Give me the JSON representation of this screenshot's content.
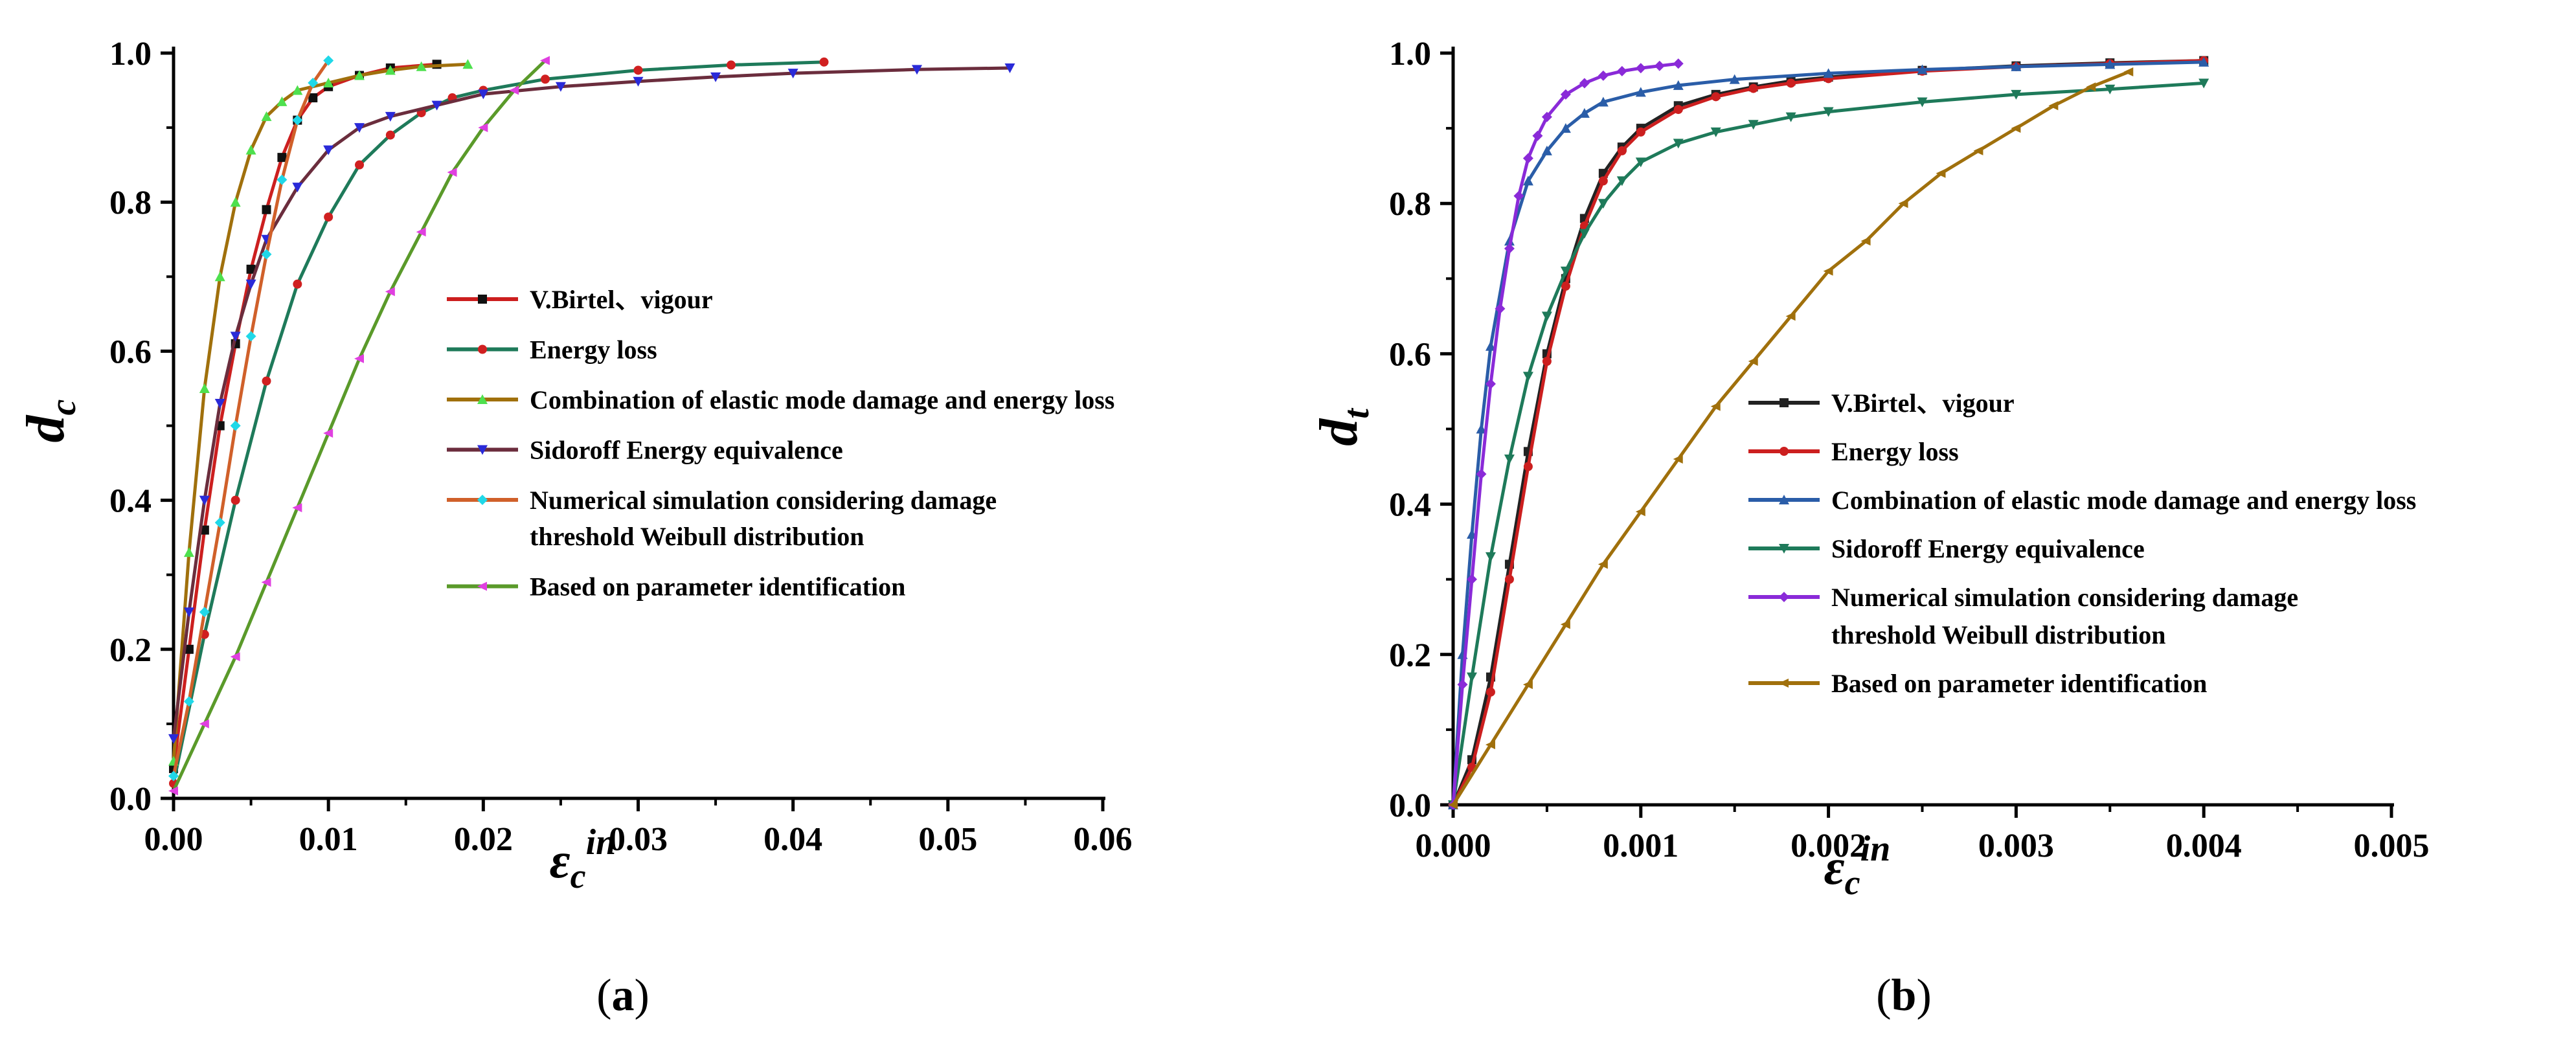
{
  "chart_data": [
    {
      "type": "line",
      "caption": {
        "prefix": "(",
        "letter": "a",
        "suffix": ")"
      },
      "xlabel": {
        "main": "ε",
        "sub": "c",
        "sup": "in"
      },
      "ylabel": {
        "main": "d",
        "sub": "c"
      },
      "xlim": [
        0,
        0.06
      ],
      "ylim": [
        0,
        1.0
      ],
      "x_ticks": [
        "0.00",
        "0.01",
        "0.02",
        "0.03",
        "0.04",
        "0.05",
        "0.06"
      ],
      "y_ticks": [
        "0.0",
        "0.2",
        "0.4",
        "0.6",
        "0.8",
        "1.0"
      ],
      "legend_position": "center-right",
      "series": [
        {
          "name": "V.Birtel、vigour",
          "legend_lines": [
            "V.Birtel、vigour"
          ],
          "color": "#cc1f1f",
          "marker_color": "#111111",
          "x": [
            0,
            0.001,
            0.002,
            0.003,
            0.004,
            0.005,
            0.006,
            0.007,
            0.008,
            0.009,
            0.01,
            0.012,
            0.014,
            0.017
          ],
          "y": [
            0.04,
            0.2,
            0.36,
            0.5,
            0.61,
            0.71,
            0.79,
            0.86,
            0.91,
            0.94,
            0.955,
            0.97,
            0.98,
            0.985
          ]
        },
        {
          "name": "Energy loss",
          "legend_lines": [
            "Energy loss"
          ],
          "color": "#1e7a5a",
          "marker_color": "#d02020",
          "x": [
            0,
            0.002,
            0.004,
            0.006,
            0.008,
            0.01,
            0.012,
            0.014,
            0.016,
            0.018,
            0.02,
            0.024,
            0.03,
            0.036,
            0.042
          ],
          "y": [
            0.02,
            0.22,
            0.4,
            0.56,
            0.69,
            0.78,
            0.85,
            0.89,
            0.92,
            0.94,
            0.95,
            0.965,
            0.977,
            0.984,
            0.988
          ]
        },
        {
          "name": "Combination of elastic mode damage and energy loss",
          "legend_lines": [
            "Combination of elastic mode damage and energy loss"
          ],
          "color": "#a0700c",
          "marker_color": "#4ee04e",
          "x": [
            0,
            0.001,
            0.002,
            0.003,
            0.004,
            0.005,
            0.006,
            0.007,
            0.008,
            0.01,
            0.012,
            0.014,
            0.016,
            0.019
          ],
          "y": [
            0.05,
            0.33,
            0.55,
            0.7,
            0.8,
            0.87,
            0.915,
            0.935,
            0.95,
            0.96,
            0.97,
            0.977,
            0.982,
            0.985
          ]
        },
        {
          "name": "Sidoroff Energy equivalence",
          "legend_lines": [
            "Sidoroff Energy equivalence"
          ],
          "color": "#6b2d3d",
          "marker_color": "#2a2ad8",
          "x": [
            0,
            0.001,
            0.002,
            0.003,
            0.004,
            0.005,
            0.006,
            0.008,
            0.01,
            0.012,
            0.014,
            0.017,
            0.02,
            0.025,
            0.03,
            0.035,
            0.04,
            0.048,
            0.054
          ],
          "y": [
            0.08,
            0.25,
            0.4,
            0.53,
            0.62,
            0.69,
            0.75,
            0.82,
            0.87,
            0.9,
            0.915,
            0.93,
            0.945,
            0.955,
            0.962,
            0.968,
            0.973,
            0.978,
            0.98
          ]
        },
        {
          "name": "Numerical simulation considering damage threshold Weibull distribution",
          "legend_lines": [
            "Numerical simulation considering damage",
            "threshold Weibull distribution"
          ],
          "color": "#d0602a",
          "marker_color": "#20d8e8",
          "x": [
            0,
            0.001,
            0.002,
            0.003,
            0.004,
            0.005,
            0.006,
            0.007,
            0.008,
            0.009,
            0.01
          ],
          "y": [
            0.03,
            0.13,
            0.25,
            0.37,
            0.5,
            0.62,
            0.73,
            0.83,
            0.91,
            0.96,
            0.99
          ]
        },
        {
          "name": "Based on parameter identification",
          "legend_lines": [
            "Based on parameter identification"
          ],
          "color": "#5a9a2a",
          "marker_color": "#e040e0",
          "x": [
            0,
            0.002,
            0.004,
            0.006,
            0.008,
            0.01,
            0.012,
            0.014,
            0.016,
            0.018,
            0.02,
            0.022,
            0.024
          ],
          "y": [
            0.01,
            0.1,
            0.19,
            0.29,
            0.39,
            0.49,
            0.59,
            0.68,
            0.76,
            0.84,
            0.9,
            0.95,
            0.99
          ]
        }
      ]
    },
    {
      "type": "line",
      "caption": {
        "prefix": "(",
        "letter": "b",
        "suffix": ")"
      },
      "xlabel": {
        "main": "ε",
        "sub": "c",
        "sup": "in"
      },
      "ylabel": {
        "main": "d",
        "sub": "t"
      },
      "xlim": [
        0,
        0.005
      ],
      "ylim": [
        0,
        1.0
      ],
      "x_ticks": [
        "0.000",
        "0.001",
        "0.002",
        "0.003",
        "0.004",
        "0.005"
      ],
      "y_ticks": [
        "0.0",
        "0.2",
        "0.4",
        "0.6",
        "0.8",
        "1.0"
      ],
      "legend_position": "center-right",
      "series": [
        {
          "name": "V.Birtel、vigour",
          "legend_lines": [
            "V.Birtel、vigour"
          ],
          "color": "#222222",
          "marker_color": "#222222",
          "x": [
            0,
            0.0001,
            0.0002,
            0.0003,
            0.0004,
            0.0005,
            0.0006,
            0.0007,
            0.0008,
            0.0009,
            0.001,
            0.0012,
            0.0014,
            0.0016,
            0.0018,
            0.002,
            0.0025,
            0.003,
            0.0035,
            0.004
          ],
          "y": [
            0,
            0.06,
            0.17,
            0.32,
            0.47,
            0.6,
            0.7,
            0.78,
            0.84,
            0.875,
            0.9,
            0.93,
            0.945,
            0.955,
            0.963,
            0.968,
            0.977,
            0.983,
            0.987,
            0.99
          ]
        },
        {
          "name": "Energy loss",
          "legend_lines": [
            "Energy loss"
          ],
          "color": "#cc1f1f",
          "marker_color": "#cc1f1f",
          "x": [
            0,
            0.0001,
            0.0002,
            0.0003,
            0.0004,
            0.0005,
            0.0006,
            0.0007,
            0.0008,
            0.0009,
            0.001,
            0.0012,
            0.0014,
            0.0016,
            0.0018,
            0.002,
            0.0025,
            0.003,
            0.0035,
            0.004
          ],
          "y": [
            0,
            0.05,
            0.15,
            0.3,
            0.45,
            0.59,
            0.69,
            0.77,
            0.83,
            0.87,
            0.895,
            0.925,
            0.942,
            0.953,
            0.96,
            0.966,
            0.976,
            0.982,
            0.986,
            0.99
          ]
        },
        {
          "name": "Combination of elastic mode damage and energy loss",
          "legend_lines": [
            "Combination of elastic mode damage and energy loss"
          ],
          "color": "#2a5da8",
          "marker_color": "#2a5da8",
          "x": [
            0,
            5e-05,
            0.0001,
            0.00015,
            0.0002,
            0.0003,
            0.0004,
            0.0005,
            0.0006,
            0.0007,
            0.0008,
            0.001,
            0.0012,
            0.0015,
            0.002,
            0.0025,
            0.003,
            0.0035,
            0.004
          ],
          "y": [
            0,
            0.2,
            0.36,
            0.5,
            0.61,
            0.75,
            0.83,
            0.87,
            0.9,
            0.92,
            0.935,
            0.948,
            0.957,
            0.965,
            0.973,
            0.978,
            0.982,
            0.985,
            0.988
          ]
        },
        {
          "name": "Sidoroff Energy equivalence",
          "legend_lines": [
            "Sidoroff Energy equivalence"
          ],
          "color": "#1e7a5a",
          "marker_color": "#1e7a5a",
          "x": [
            0,
            0.0001,
            0.0002,
            0.0003,
            0.0004,
            0.0005,
            0.0006,
            0.0007,
            0.0008,
            0.0009,
            0.001,
            0.0012,
            0.0014,
            0.0016,
            0.0018,
            0.002,
            0.0025,
            0.003,
            0.0035,
            0.004
          ],
          "y": [
            0,
            0.17,
            0.33,
            0.46,
            0.57,
            0.65,
            0.71,
            0.76,
            0.8,
            0.83,
            0.855,
            0.88,
            0.895,
            0.905,
            0.915,
            0.922,
            0.935,
            0.945,
            0.952,
            0.96
          ]
        },
        {
          "name": "Numerical simulation considering damage threshold Weibull distribution",
          "legend_lines": [
            "Numerical simulation considering damage",
            "threshold Weibull distribution"
          ],
          "color": "#8a2ad8",
          "marker_color": "#8a2ad8",
          "x": [
            0,
            5e-05,
            0.0001,
            0.00015,
            0.0002,
            0.00025,
            0.0003,
            0.00035,
            0.0004,
            0.00045,
            0.0005,
            0.0006,
            0.0007,
            0.0008,
            0.0009,
            0.001,
            0.0011,
            0.0012
          ],
          "y": [
            0,
            0.16,
            0.3,
            0.44,
            0.56,
            0.66,
            0.74,
            0.81,
            0.86,
            0.89,
            0.915,
            0.945,
            0.96,
            0.97,
            0.976,
            0.98,
            0.983,
            0.986
          ]
        },
        {
          "name": "Based on parameter identification",
          "legend_lines": [
            "Based on parameter identification"
          ],
          "color": "#a0700c",
          "marker_color": "#a0700c",
          "x": [
            0,
            0.0002,
            0.0004,
            0.0006,
            0.0008,
            0.001,
            0.0012,
            0.0014,
            0.0016,
            0.0018,
            0.002,
            0.0022,
            0.0024,
            0.0026,
            0.0028,
            0.003,
            0.0032,
            0.0034,
            0.0036
          ],
          "y": [
            0,
            0.08,
            0.16,
            0.24,
            0.32,
            0.39,
            0.46,
            0.53,
            0.59,
            0.65,
            0.71,
            0.75,
            0.8,
            0.84,
            0.87,
            0.9,
            0.93,
            0.955,
            0.975
          ]
        }
      ]
    }
  ]
}
